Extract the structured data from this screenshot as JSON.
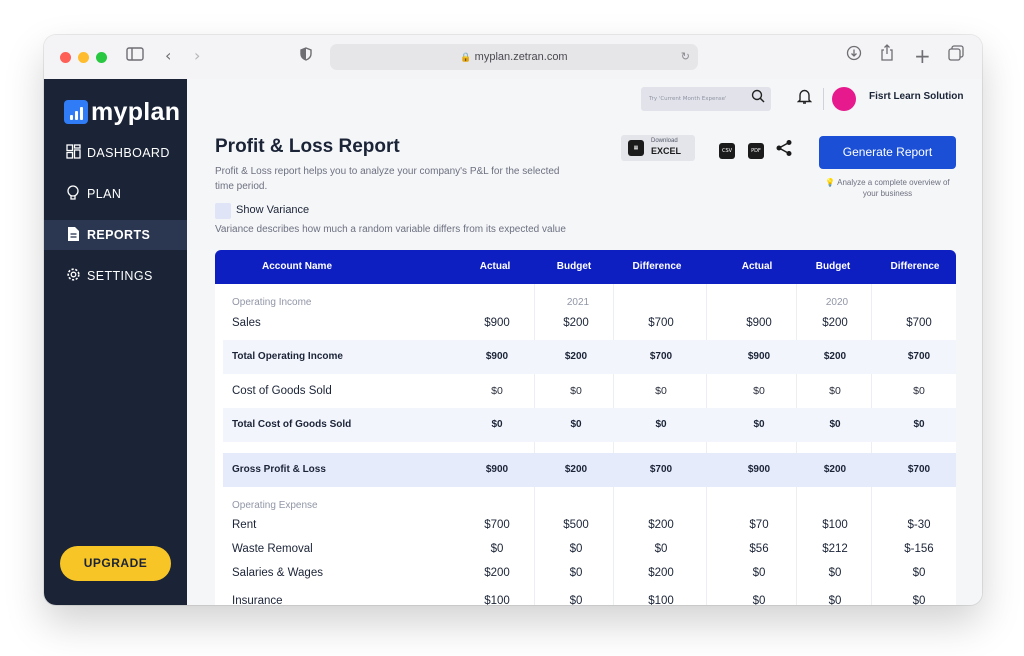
{
  "browser": {
    "url": "myplan.zetran.com"
  },
  "sidebar": {
    "logo": "myplan",
    "items": [
      {
        "label": "DASHBOARD",
        "icon": "dashboard-icon"
      },
      {
        "label": "PLAN",
        "icon": "lightbulb-icon"
      },
      {
        "label": "REPORTS",
        "icon": "document-icon",
        "active": true
      },
      {
        "label": "SETTINGS",
        "icon": "gear-icon"
      }
    ],
    "upgrade_label": "UPGRADE"
  },
  "header": {
    "search_placeholder": "Try 'Current Month Expense'",
    "org_name": "Fisrt Learn Solution"
  },
  "report": {
    "title": "Profit & Loss Report",
    "description": "Profit & Loss report helps you to analyze your company's P&L for the selected time period.",
    "show_variance_label": "Show Variance",
    "variance_description": "Variance describes how much a random variable differs from its expected value",
    "download_small": "Download",
    "download_big": "EXCEL",
    "csv_label": "CSV",
    "pdf_label": "PDF",
    "generate_label": "Generate Report",
    "analyze_note": "Analyze a complete overview of your business"
  },
  "table": {
    "columns": [
      "Account Name",
      "Actual",
      "Budget",
      "Difference",
      "Actual",
      "Budget",
      "Difference"
    ],
    "years": [
      "2021",
      "2020"
    ],
    "sections": {
      "income": "Operating Income",
      "expense": "Operating Expense"
    },
    "rows": {
      "sales": [
        "Sales",
        "$900",
        "$200",
        "$700",
        "$900",
        "$200",
        "$700"
      ],
      "total_income": [
        "Total Operating Income",
        "$900",
        "$200",
        "$700",
        "$900",
        "$200",
        "$700"
      ],
      "cogs": [
        "Cost of Goods Sold",
        "$0",
        "$0",
        "$0",
        "$0",
        "$0",
        "$0"
      ],
      "total_cogs": [
        "Total Cost of Goods Sold",
        "$0",
        "$0",
        "$0",
        "$0",
        "$0",
        "$0"
      ],
      "gross": [
        "Gross Profit & Loss",
        "$900",
        "$200",
        "$700",
        "$900",
        "$200",
        "$700"
      ],
      "rent": [
        "Rent",
        "$700",
        "$500",
        "$200",
        "$70",
        "$100",
        "$-30"
      ],
      "waste": [
        "Waste Removal",
        "$0",
        "$0",
        "$0",
        "$56",
        "$212",
        "$-156"
      ],
      "salaries": [
        "Salaries & Wages",
        "$200",
        "$0",
        "$200",
        "$0",
        "$0",
        "$0"
      ],
      "insurance": [
        "Insurance",
        "$100",
        "$0",
        "$100",
        "$0",
        "$0",
        "$0"
      ]
    }
  },
  "colors": {
    "sidebar": "#1b2437",
    "header_blue": "#0e1fc2",
    "button_blue": "#1a4fd6",
    "upgrade_yellow": "#f7c525",
    "avatar_pink": "#e6198d"
  }
}
